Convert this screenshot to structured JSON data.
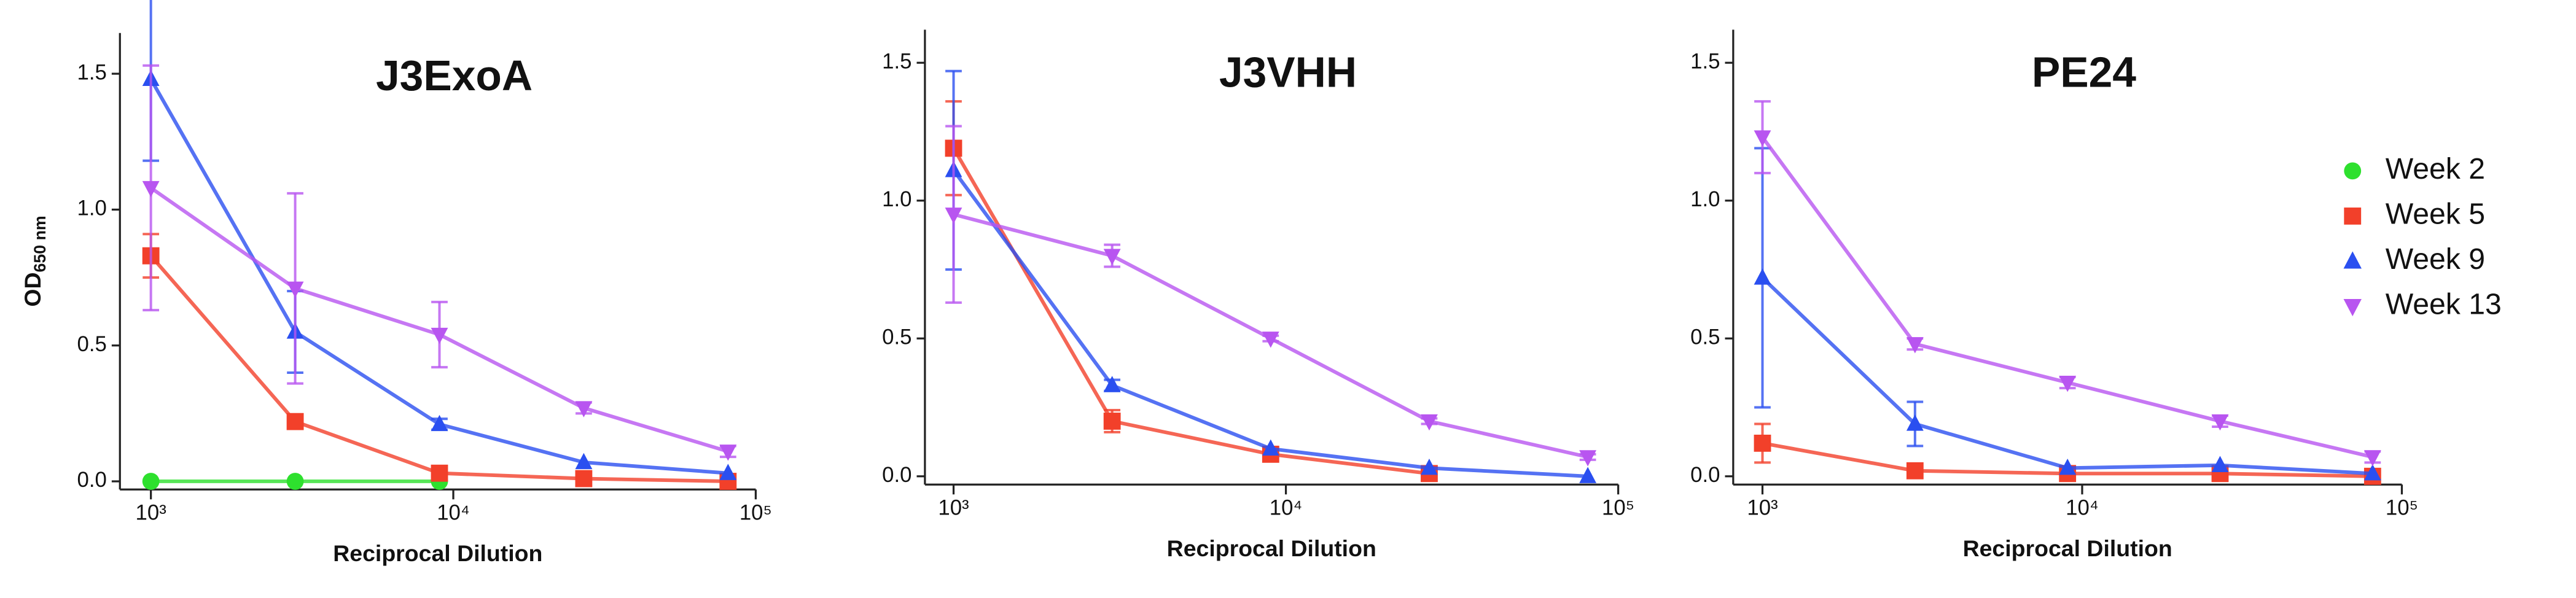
{
  "chart_data": [
    {
      "type": "line",
      "title": "J3ExoA",
      "xlabel": "Reciprocal Dilution",
      "ylabel": "OD",
      "ylabel_sub": "650 nm",
      "log_x": true,
      "xlim": [
        790,
        100000
      ],
      "ylim": [
        -0.03,
        1.65
      ],
      "xticks": [
        {
          "value": 1000,
          "label": "10³"
        },
        {
          "value": 10000,
          "label": "10⁴"
        },
        {
          "value": 100000,
          "label": "10⁵"
        }
      ],
      "yticks": [
        {
          "value": 0,
          "label": "0.0"
        },
        0.5,
        {
          "value": 1,
          "label": "1.0"
        },
        1.5
      ],
      "x": [
        1000,
        3000,
        9000,
        27000,
        81000
      ],
      "series": [
        {
          "name": "Week 2",
          "color": "#2ee02e",
          "marker": "circle",
          "values": [
            0,
            0,
            0,
            null,
            null
          ],
          "errors": [
            null,
            null,
            null,
            null,
            null
          ]
        },
        {
          "name": "Week 5",
          "color": "#f2402a",
          "marker": "square",
          "values": [
            0.83,
            0.22,
            0.03,
            0.01,
            0
          ],
          "errors": [
            0.08,
            0.02,
            0.02,
            null,
            null
          ]
        },
        {
          "name": "Week 9",
          "color": "#2a4ff0",
          "marker": "triangle",
          "values": [
            1.48,
            0.55,
            0.21,
            0.07,
            0.03
          ],
          "errors": [
            0.3,
            0.15,
            0.02,
            null,
            null
          ]
        },
        {
          "name": "Week 13",
          "color": "#b855f0",
          "marker": "triangle-down",
          "values": [
            1.08,
            0.71,
            0.54,
            0.27,
            0.11
          ],
          "errors": [
            0.45,
            0.35,
            0.12,
            0.02,
            0.02
          ]
        }
      ]
    },
    {
      "type": "line",
      "title": "J3VHH",
      "xlabel": "Reciprocal Dilution",
      "log_x": true,
      "xlim": [
        820,
        100000
      ],
      "ylim": [
        -0.03,
        1.62
      ],
      "xticks": [
        {
          "value": 1000,
          "label": "10³"
        },
        {
          "value": 10000,
          "label": "10⁴"
        },
        {
          "value": 100000,
          "label": "10⁵"
        }
      ],
      "yticks": [
        {
          "value": 0,
          "label": "0.0"
        },
        0.5,
        {
          "value": 1,
          "label": "1.0"
        },
        1.5
      ],
      "x": [
        1000,
        3000,
        9000,
        27000,
        81000
      ],
      "series": [
        {
          "name": "Week 5",
          "color": "#f2402a",
          "marker": "square",
          "values": [
            1.19,
            0.2,
            0.08,
            0.01,
            null
          ],
          "errors": [
            0.17,
            0.04,
            null,
            null,
            null
          ]
        },
        {
          "name": "Week 9",
          "color": "#2a4ff0",
          "marker": "triangle",
          "values": [
            1.11,
            0.33,
            0.1,
            0.03,
            0
          ],
          "errors": [
            0.36,
            0.02,
            null,
            null,
            null
          ]
        },
        {
          "name": "Week 13",
          "color": "#b855f0",
          "marker": "triangle-down",
          "values": [
            0.95,
            0.8,
            0.5,
            0.2,
            0.07
          ],
          "errors": [
            0.32,
            0.04,
            0.01,
            0.01,
            0.01
          ]
        }
      ]
    },
    {
      "type": "line",
      "title": "PE24",
      "xlabel": "Reciprocal Dilution",
      "log_x": true,
      "xlim": [
        810,
        100000
      ],
      "ylim": [
        -0.03,
        1.62
      ],
      "xticks": [
        {
          "value": 1000,
          "label": "10³"
        },
        {
          "value": 10000,
          "label": "10⁴"
        },
        {
          "value": 100000,
          "label": "10⁵"
        }
      ],
      "yticks": [
        {
          "value": 0,
          "label": "0.0"
        },
        0.5,
        {
          "value": 1,
          "label": "1.0"
        },
        1.5
      ],
      "x": [
        1000,
        3000,
        9000,
        27000,
        81000
      ],
      "series": [
        {
          "name": "Week 5",
          "color": "#f2402a",
          "marker": "square",
          "values": [
            0.12,
            0.02,
            0.01,
            0.01,
            0
          ],
          "errors": [
            0.07,
            null,
            null,
            null,
            null
          ]
        },
        {
          "name": "Week 9",
          "color": "#2a4ff0",
          "marker": "triangle",
          "values": [
            0.72,
            0.19,
            0.03,
            0.04,
            0.01
          ],
          "errors": [
            0.47,
            0.08,
            null,
            null,
            null
          ]
        },
        {
          "name": "Week 13",
          "color": "#b855f0",
          "marker": "triangle-down",
          "values": [
            1.23,
            0.48,
            0.34,
            0.2,
            0.07
          ],
          "errors": [
            0.13,
            0.02,
            0.02,
            0.02,
            0.02
          ]
        }
      ]
    }
  ]
}
